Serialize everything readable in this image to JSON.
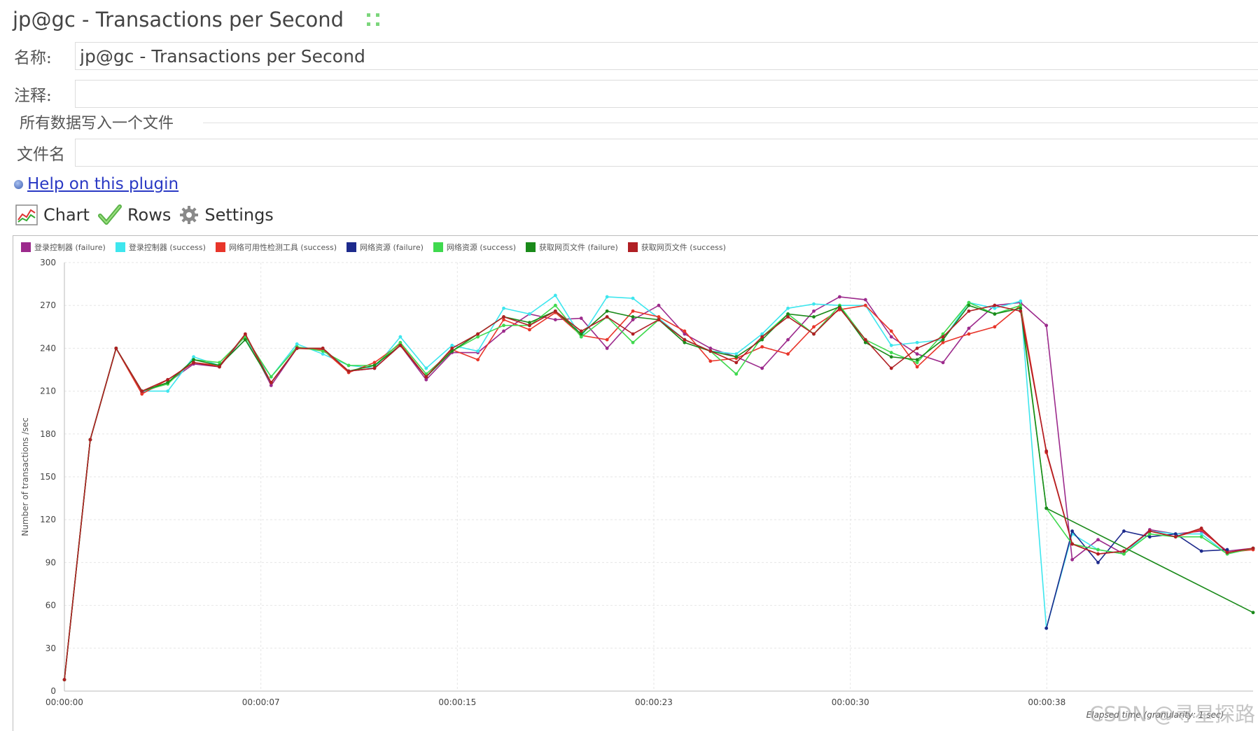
{
  "window": {
    "title": "jp@gc - Transactions per Second"
  },
  "form": {
    "name_label": "名称:",
    "name_value": "jp@gc - Transactions per Second",
    "comment_label": "注释:",
    "comment_value": "",
    "group_title": "所有数据写入一个文件",
    "filename_label": "文件名",
    "filename_value": ""
  },
  "help": {
    "link_text": "Help on this plugin"
  },
  "tabs": [
    {
      "label": "Chart",
      "icon": "chart-icon"
    },
    {
      "label": "Rows",
      "icon": "checkmark-icon"
    },
    {
      "label": "Settings",
      "icon": "gear-icon"
    }
  ],
  "watermark": "CSDN @寻星探路",
  "chart_data": {
    "type": "line",
    "title": "",
    "xlabel": "Elapsed time (granularity: 1 sec)",
    "ylabel": "Number of transactions /sec",
    "ylim": [
      0,
      300
    ],
    "yticks": [
      "0",
      "30",
      "60",
      "90",
      "120",
      "150",
      "180",
      "210",
      "240",
      "270",
      "300"
    ],
    "xticks": [
      "00:00:00",
      "00:00:07",
      "00:00:15",
      "00:00:23",
      "00:00:30",
      "00:00:38"
    ],
    "grid": true,
    "legend_placement": "top-left",
    "series": [
      {
        "name": "登录控制器 (failure)",
        "color": "#9c2a8c",
        "values": [
          [
            0,
            8
          ],
          [
            1,
            176
          ],
          [
            2,
            240
          ],
          [
            3,
            209
          ],
          [
            4,
            216
          ],
          [
            5,
            229
          ],
          [
            6,
            227
          ],
          [
            7,
            249
          ],
          [
            8,
            214
          ],
          [
            9,
            240
          ],
          [
            10,
            240
          ],
          [
            11,
            224
          ],
          [
            12,
            226
          ],
          [
            13,
            242
          ],
          [
            14,
            218
          ],
          [
            15,
            237
          ],
          [
            16,
            237
          ],
          [
            17,
            252
          ],
          [
            18,
            264
          ],
          [
            19,
            260
          ],
          [
            20,
            261
          ],
          [
            21,
            240
          ],
          [
            22,
            260
          ],
          [
            23,
            270
          ],
          [
            24,
            250
          ],
          [
            25,
            240
          ],
          [
            26,
            234
          ],
          [
            27,
            226
          ],
          [
            28,
            246
          ],
          [
            29,
            266
          ],
          [
            30,
            276
          ],
          [
            31,
            274
          ],
          [
            32,
            248
          ],
          [
            33,
            236
          ],
          [
            34,
            230
          ],
          [
            35,
            254
          ],
          [
            36,
            270
          ],
          [
            37,
            272
          ],
          [
            38,
            256
          ],
          [
            39,
            92
          ],
          [
            40,
            106
          ],
          [
            41,
            96
          ],
          [
            42,
            113
          ],
          [
            43,
            110
          ],
          [
            44,
            112
          ],
          [
            45,
            98
          ],
          [
            46,
            100
          ]
        ]
      },
      {
        "name": "登录控制器 (success)",
        "color": "#3ee6ee",
        "values": [
          [
            0,
            8
          ],
          [
            1,
            176
          ],
          [
            2,
            240
          ],
          [
            3,
            210
          ],
          [
            4,
            210
          ],
          [
            5,
            234
          ],
          [
            6,
            228
          ],
          [
            7,
            246
          ],
          [
            8,
            220
          ],
          [
            9,
            243
          ],
          [
            10,
            236
          ],
          [
            11,
            228
          ],
          [
            12,
            226
          ],
          [
            13,
            248
          ],
          [
            14,
            226
          ],
          [
            15,
            242
          ],
          [
            16,
            238
          ],
          [
            17,
            268
          ],
          [
            18,
            264
          ],
          [
            19,
            277
          ],
          [
            20,
            248
          ],
          [
            21,
            276
          ],
          [
            22,
            275
          ],
          [
            23,
            261
          ],
          [
            24,
            246
          ],
          [
            25,
            238
          ],
          [
            26,
            236
          ],
          [
            27,
            250
          ],
          [
            28,
            268
          ],
          [
            29,
            271
          ],
          [
            30,
            270
          ],
          [
            31,
            270
          ],
          [
            32,
            242
          ],
          [
            33,
            244
          ],
          [
            34,
            246
          ],
          [
            35,
            272
          ],
          [
            36,
            268
          ],
          [
            37,
            273
          ],
          [
            38,
            44
          ],
          [
            39,
            110
          ],
          [
            40,
            99
          ],
          [
            41,
            96
          ],
          [
            42,
            112
          ],
          [
            43,
            110
          ],
          [
            44,
            110
          ],
          [
            45,
            96
          ],
          [
            46,
            100
          ]
        ]
      },
      {
        "name": "网络可用性检测工具 (success)",
        "color": "#e8352a",
        "values": [
          [
            0,
            8
          ],
          [
            1,
            176
          ],
          [
            2,
            240
          ],
          [
            3,
            208
          ],
          [
            4,
            218
          ],
          [
            5,
            230
          ],
          [
            6,
            228
          ],
          [
            7,
            249
          ],
          [
            8,
            216
          ],
          [
            9,
            240
          ],
          [
            10,
            239
          ],
          [
            11,
            223
          ],
          [
            12,
            230
          ],
          [
            13,
            243
          ],
          [
            14,
            220
          ],
          [
            15,
            239
          ],
          [
            16,
            232
          ],
          [
            17,
            260
          ],
          [
            18,
            253
          ],
          [
            19,
            265
          ],
          [
            20,
            249
          ],
          [
            21,
            246
          ],
          [
            22,
            266
          ],
          [
            23,
            262
          ],
          [
            24,
            252
          ],
          [
            25,
            231
          ],
          [
            26,
            233
          ],
          [
            27,
            241
          ],
          [
            28,
            236
          ],
          [
            29,
            255
          ],
          [
            30,
            267
          ],
          [
            31,
            270
          ],
          [
            32,
            252
          ],
          [
            33,
            227
          ],
          [
            34,
            244
          ],
          [
            35,
            250
          ],
          [
            36,
            255
          ],
          [
            37,
            270
          ],
          [
            38,
            167
          ],
          [
            39,
            103
          ],
          [
            40,
            96
          ],
          [
            41,
            98
          ],
          [
            42,
            112
          ],
          [
            43,
            108
          ],
          [
            44,
            113
          ],
          [
            45,
            97
          ],
          [
            46,
            99
          ]
        ]
      },
      {
        "name": "网络资源 (failure)",
        "color": "#1d2a8c",
        "values": [
          [
            38,
            44
          ],
          [
            39,
            112
          ],
          [
            40,
            90
          ],
          [
            41,
            112
          ],
          [
            42,
            108
          ],
          [
            43,
            110
          ],
          [
            44,
            98
          ],
          [
            45,
            99
          ]
        ]
      },
      {
        "name": "网络资源 (success)",
        "color": "#3fd94e",
        "values": [
          [
            0,
            8
          ],
          [
            1,
            176
          ],
          [
            2,
            240
          ],
          [
            3,
            210
          ],
          [
            4,
            215
          ],
          [
            5,
            232
          ],
          [
            6,
            230
          ],
          [
            7,
            248
          ],
          [
            8,
            220
          ],
          [
            9,
            241
          ],
          [
            10,
            238
          ],
          [
            11,
            228
          ],
          [
            12,
            228
          ],
          [
            13,
            244
          ],
          [
            14,
            222
          ],
          [
            15,
            238
          ],
          [
            16,
            248
          ],
          [
            17,
            256
          ],
          [
            18,
            256
          ],
          [
            19,
            270
          ],
          [
            20,
            248
          ],
          [
            21,
            262
          ],
          [
            22,
            244
          ],
          [
            23,
            260
          ],
          [
            24,
            246
          ],
          [
            25,
            238
          ],
          [
            26,
            222
          ],
          [
            27,
            248
          ],
          [
            28,
            264
          ],
          [
            29,
            250
          ],
          [
            30,
            270
          ],
          [
            31,
            246
          ],
          [
            32,
            237
          ],
          [
            33,
            230
          ],
          [
            34,
            250
          ],
          [
            35,
            272
          ],
          [
            36,
            264
          ],
          [
            37,
            270
          ],
          [
            38,
            128
          ],
          [
            39,
            103
          ],
          [
            40,
            99
          ],
          [
            41,
            96
          ],
          [
            42,
            110
          ],
          [
            43,
            108
          ],
          [
            44,
            108
          ],
          [
            45,
            96
          ],
          [
            46,
            100
          ]
        ]
      },
      {
        "name": "获取网页文件 (failure)",
        "color": "#1a8a1a",
        "values": [
          [
            0,
            8
          ],
          [
            1,
            176
          ],
          [
            2,
            240
          ],
          [
            3,
            210
          ],
          [
            4,
            216
          ],
          [
            5,
            232
          ],
          [
            6,
            228
          ],
          [
            7,
            246
          ],
          [
            8,
            216
          ],
          [
            9,
            240
          ],
          [
            10,
            240
          ],
          [
            11,
            224
          ],
          [
            12,
            228
          ],
          [
            13,
            242
          ],
          [
            14,
            220
          ],
          [
            15,
            238
          ],
          [
            16,
            250
          ],
          [
            17,
            262
          ],
          [
            18,
            258
          ],
          [
            19,
            266
          ],
          [
            20,
            250
          ],
          [
            21,
            266
          ],
          [
            22,
            262
          ],
          [
            23,
            260
          ],
          [
            24,
            244
          ],
          [
            25,
            238
          ],
          [
            26,
            234
          ],
          [
            27,
            246
          ],
          [
            28,
            264
          ],
          [
            29,
            262
          ],
          [
            30,
            269
          ],
          [
            31,
            244
          ],
          [
            32,
            234
          ],
          [
            33,
            232
          ],
          [
            34,
            246
          ],
          [
            35,
            270
          ],
          [
            36,
            264
          ],
          [
            37,
            268
          ],
          [
            38,
            128
          ],
          [
            46,
            55
          ]
        ]
      },
      {
        "name": "获取网页文件 (success)",
        "color": "#b01f24",
        "values": [
          [
            0,
            8
          ],
          [
            1,
            176
          ],
          [
            2,
            240
          ],
          [
            3,
            210
          ],
          [
            4,
            218
          ],
          [
            5,
            230
          ],
          [
            6,
            227
          ],
          [
            7,
            250
          ],
          [
            8,
            216
          ],
          [
            9,
            240
          ],
          [
            10,
            240
          ],
          [
            11,
            224
          ],
          [
            12,
            226
          ],
          [
            13,
            242
          ],
          [
            14,
            220
          ],
          [
            15,
            240
          ],
          [
            16,
            250
          ],
          [
            17,
            262
          ],
          [
            18,
            256
          ],
          [
            19,
            266
          ],
          [
            20,
            252
          ],
          [
            21,
            262
          ],
          [
            22,
            250
          ],
          [
            23,
            260
          ],
          [
            24,
            246
          ],
          [
            25,
            238
          ],
          [
            26,
            230
          ],
          [
            27,
            248
          ],
          [
            28,
            262
          ],
          [
            29,
            250
          ],
          [
            30,
            268
          ],
          [
            31,
            246
          ],
          [
            32,
            226
          ],
          [
            33,
            240
          ],
          [
            34,
            248
          ],
          [
            35,
            266
          ],
          [
            36,
            270
          ],
          [
            37,
            266
          ],
          [
            38,
            168
          ],
          [
            39,
            103
          ],
          [
            40,
            96
          ],
          [
            41,
            98
          ],
          [
            42,
            112
          ],
          [
            43,
            108
          ],
          [
            44,
            114
          ],
          [
            45,
            97
          ],
          [
            46,
            100
          ]
        ]
      }
    ]
  }
}
